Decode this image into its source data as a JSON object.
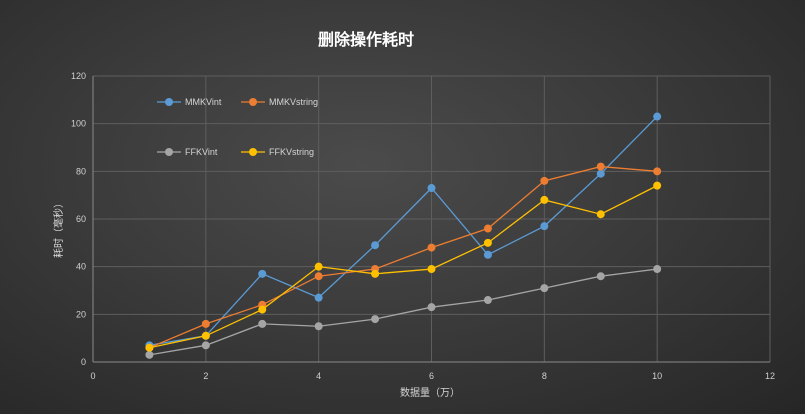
{
  "chart_data": {
    "type": "line",
    "title": "删除操作耗时",
    "xlabel": "数据量（万）",
    "ylabel": "耗时（毫秒）",
    "xlim": [
      0,
      12
    ],
    "ylim": [
      0,
      120
    ],
    "xticks": [
      0,
      2,
      4,
      6,
      8,
      10,
      12
    ],
    "yticks": [
      0,
      20,
      40,
      60,
      80,
      100,
      120
    ],
    "grid": true,
    "legend_position": "top-left",
    "x": [
      1,
      2,
      3,
      4,
      5,
      6,
      7,
      8,
      9,
      10
    ],
    "series": [
      {
        "name": "MMKVint",
        "color": "#5b9bd5",
        "values": [
          7,
          11,
          37,
          27,
          49,
          73,
          45,
          57,
          79,
          103
        ]
      },
      {
        "name": "MMKVstring",
        "color": "#ed7d31",
        "values": [
          6,
          16,
          24,
          36,
          39,
          48,
          56,
          76,
          82,
          80
        ]
      },
      {
        "name": "FFKVint",
        "color": "#a5a5a5",
        "values": [
          3,
          7,
          16,
          15,
          18,
          23,
          26,
          31,
          36,
          39
        ]
      },
      {
        "name": "FFKVstring",
        "color": "#ffc000",
        "values": [
          6,
          11,
          22,
          40,
          37,
          39,
          50,
          68,
          62,
          74
        ]
      }
    ]
  }
}
